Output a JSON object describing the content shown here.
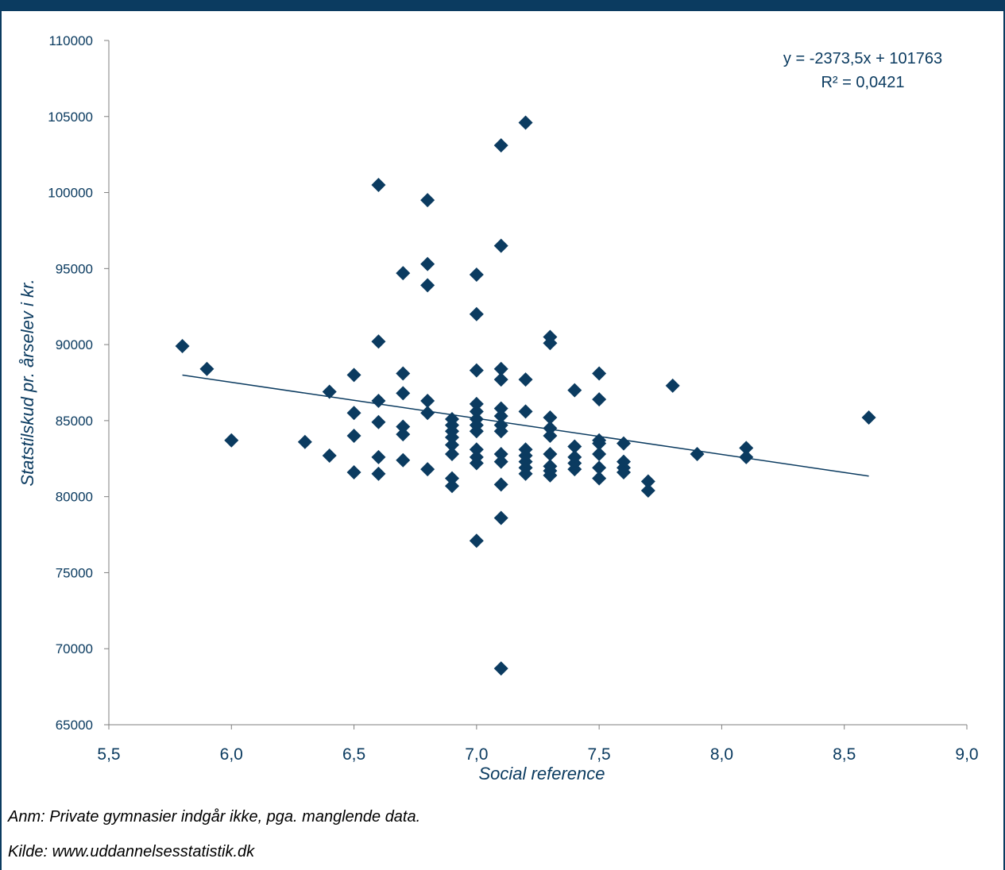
{
  "chart_data": {
    "type": "scatter",
    "xlabel": "Social reference",
    "ylabel": "Statstilskud pr. årselev i kr.",
    "xlim": [
      5.5,
      9.0
    ],
    "ylim": [
      65000,
      110000
    ],
    "x_ticks": [
      5.5,
      6.0,
      6.5,
      7.0,
      7.5,
      8.0,
      8.5,
      9.0
    ],
    "x_tick_labels": [
      "5,5",
      "6,0",
      "6,5",
      "7,0",
      "7,5",
      "8,0",
      "8,5",
      "9,0"
    ],
    "y_ticks": [
      65000,
      70000,
      75000,
      80000,
      85000,
      90000,
      95000,
      100000,
      105000,
      110000
    ],
    "y_tick_labels": [
      "65000",
      "70000",
      "75000",
      "80000",
      "85000",
      "90000",
      "95000",
      "100000",
      "105000",
      "110000"
    ],
    "grid": false,
    "marker": "diamond",
    "color": "#0b3b60",
    "points": [
      [
        5.8,
        89900
      ],
      [
        5.9,
        88400
      ],
      [
        6.0,
        83700
      ],
      [
        6.3,
        83600
      ],
      [
        6.4,
        86900
      ],
      [
        6.4,
        82700
      ],
      [
        6.5,
        88000
      ],
      [
        6.5,
        85500
      ],
      [
        6.5,
        84000
      ],
      [
        6.5,
        81600
      ],
      [
        6.6,
        100500
      ],
      [
        6.6,
        90200
      ],
      [
        6.6,
        86300
      ],
      [
        6.6,
        84900
      ],
      [
        6.6,
        82600
      ],
      [
        6.6,
        81500
      ],
      [
        6.7,
        94700
      ],
      [
        6.7,
        88100
      ],
      [
        6.7,
        86800
      ],
      [
        6.7,
        84600
      ],
      [
        6.7,
        84100
      ],
      [
        6.7,
        82400
      ],
      [
        6.8,
        99500
      ],
      [
        6.8,
        95300
      ],
      [
        6.8,
        93900
      ],
      [
        6.8,
        86300
      ],
      [
        6.8,
        85500
      ],
      [
        6.8,
        81800
      ],
      [
        6.9,
        85100
      ],
      [
        6.9,
        84700
      ],
      [
        6.9,
        84300
      ],
      [
        6.9,
        83900
      ],
      [
        6.9,
        83400
      ],
      [
        6.9,
        82800
      ],
      [
        6.9,
        81200
      ],
      [
        6.9,
        80700
      ],
      [
        7.0,
        94600
      ],
      [
        7.0,
        92000
      ],
      [
        7.0,
        88300
      ],
      [
        7.0,
        86100
      ],
      [
        7.0,
        85600
      ],
      [
        7.0,
        85100
      ],
      [
        7.0,
        84700
      ],
      [
        7.0,
        84300
      ],
      [
        7.0,
        83100
      ],
      [
        7.0,
        82600
      ],
      [
        7.0,
        82200
      ],
      [
        7.0,
        77100
      ],
      [
        7.1,
        103100
      ],
      [
        7.1,
        96500
      ],
      [
        7.1,
        88400
      ],
      [
        7.1,
        87700
      ],
      [
        7.1,
        85800
      ],
      [
        7.1,
        85300
      ],
      [
        7.1,
        84700
      ],
      [
        7.1,
        84300
      ],
      [
        7.1,
        82800
      ],
      [
        7.1,
        82300
      ],
      [
        7.1,
        80800
      ],
      [
        7.1,
        78600
      ],
      [
        7.1,
        68700
      ],
      [
        7.2,
        104600
      ],
      [
        7.2,
        87700
      ],
      [
        7.2,
        85600
      ],
      [
        7.2,
        83100
      ],
      [
        7.2,
        82700
      ],
      [
        7.2,
        82300
      ],
      [
        7.2,
        81900
      ],
      [
        7.2,
        81500
      ],
      [
        7.3,
        90500
      ],
      [
        7.3,
        90100
      ],
      [
        7.3,
        85200
      ],
      [
        7.3,
        84500
      ],
      [
        7.3,
        84000
      ],
      [
        7.3,
        82800
      ],
      [
        7.3,
        82000
      ],
      [
        7.3,
        81700
      ],
      [
        7.3,
        81400
      ],
      [
        7.4,
        87000
      ],
      [
        7.4,
        83300
      ],
      [
        7.4,
        82600
      ],
      [
        7.4,
        82200
      ],
      [
        7.4,
        81800
      ],
      [
        7.5,
        88100
      ],
      [
        7.5,
        86400
      ],
      [
        7.5,
        83700
      ],
      [
        7.5,
        83500
      ],
      [
        7.5,
        82800
      ],
      [
        7.5,
        81900
      ],
      [
        7.5,
        81200
      ],
      [
        7.6,
        83500
      ],
      [
        7.6,
        82300
      ],
      [
        7.6,
        81900
      ],
      [
        7.6,
        81600
      ],
      [
        7.7,
        81000
      ],
      [
        7.7,
        80400
      ],
      [
        7.8,
        87300
      ],
      [
        7.9,
        82800
      ],
      [
        8.1,
        83200
      ],
      [
        8.1,
        82600
      ],
      [
        8.6,
        85200
      ]
    ],
    "trendline": {
      "slope": -2373.5,
      "intercept": 101763,
      "x_range": [
        5.8,
        8.6
      ]
    },
    "equation_text": "y = -2373,5x + 101763",
    "r2_text": "R² = 0,0421"
  },
  "notes": {
    "anm": "Anm: Private gymnasier indgår ikke, pga. manglende data.",
    "kilde": "Kilde: www.uddannelsesstatistik.dk"
  }
}
